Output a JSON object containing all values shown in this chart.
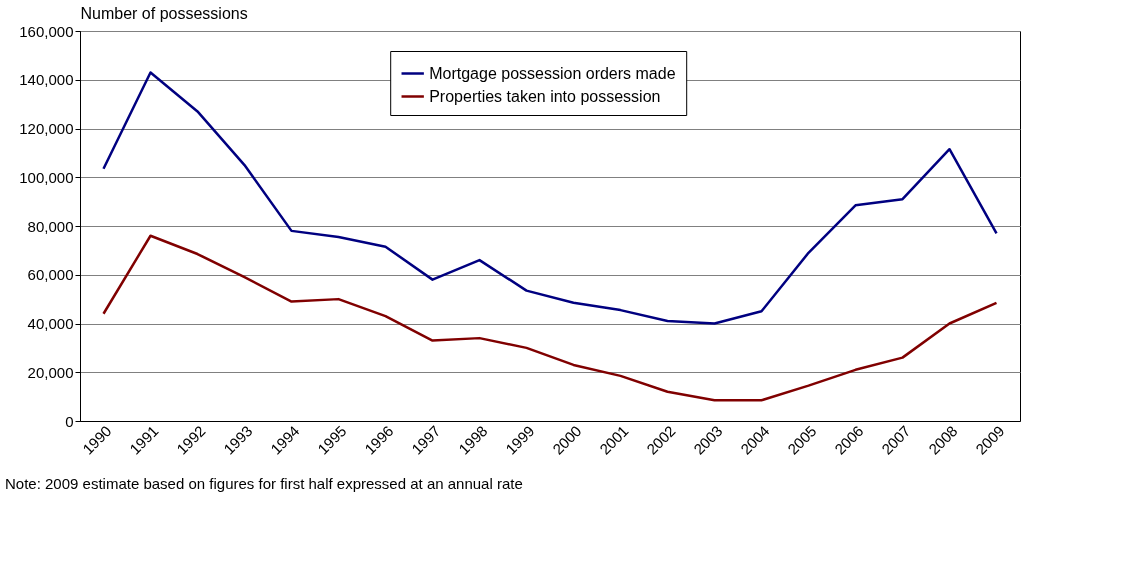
{
  "chart_data": {
    "type": "line",
    "ylabel": "Number of possessions",
    "categories": [
      "1990",
      "1991",
      "1992",
      "1993",
      "1994",
      "1995",
      "1996",
      "1997",
      "1998",
      "1999",
      "2000",
      "2001",
      "2002",
      "2003",
      "2004",
      "2005",
      "2006",
      "2007",
      "2008",
      "2009"
    ],
    "series": [
      {
        "name": "Mortgage possession orders made",
        "color": "#000080",
        "values": [
          103500,
          143000,
          127000,
          105000,
          78000,
          75500,
          71500,
          58000,
          66000,
          53500,
          48500,
          45500,
          41000,
          40000,
          45000,
          69000,
          88500,
          91000,
          111500,
          77000
        ]
      },
      {
        "name": "Properties taken into possession",
        "color": "#800000",
        "values": [
          44000,
          76000,
          68500,
          59000,
          49000,
          50000,
          43000,
          33000,
          34000,
          30000,
          23000,
          18500,
          12000,
          8500,
          8500,
          14500,
          21000,
          26000,
          40000,
          48500
        ]
      }
    ],
    "ylim": [
      0,
      160000
    ],
    "yticks": [
      0,
      {
        "value": 20000,
        "label": "20,000"
      },
      {
        "value": 40000,
        "label": "40,000"
      },
      {
        "value": 60000,
        "label": "60,000"
      },
      {
        "value": 80000,
        "label": "80,000"
      },
      {
        "value": 100000,
        "label": "100,000"
      },
      {
        "value": 120000,
        "label": "120,000"
      },
      {
        "value": 140000,
        "label": "140,000"
      },
      {
        "value": 160000,
        "label": "160,000"
      }
    ],
    "grid": "y",
    "legend": "top",
    "marker": "none",
    "line_style": "solid",
    "annotations": [
      "Note: 2009 estimate based on figures for first half expressed at an annual rate"
    ]
  }
}
